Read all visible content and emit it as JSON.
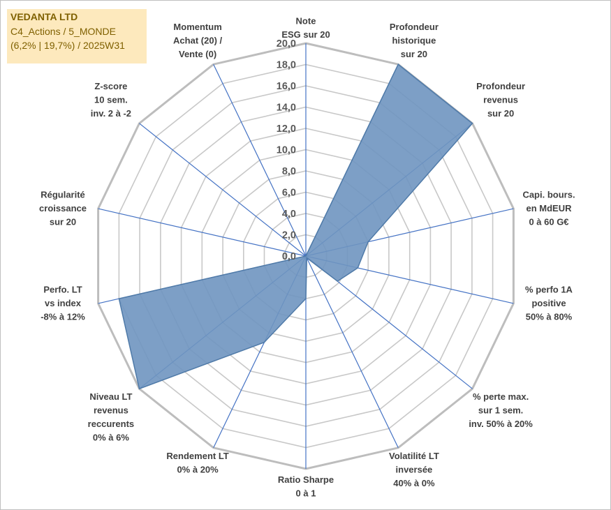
{
  "title_box": {
    "line1": "VEDANTA LTD",
    "line2": "C4_Actions / 5_MONDE",
    "line3": "(6,2% | 19,7%) / 2025W31"
  },
  "chart_data": {
    "type": "radar",
    "axes": [
      {
        "label": [
          "Note",
          "ESG sur 20"
        ]
      },
      {
        "label": [
          "Profondeur",
          "historique",
          "sur 20"
        ]
      },
      {
        "label": [
          "Profondeur",
          "revenus",
          "sur 20"
        ]
      },
      {
        "label": [
          "Capi. bours.",
          "en MdEUR",
          "0 à 60 G€"
        ]
      },
      {
        "label": [
          "% perfo 1A",
          "positive",
          "50% à 80%"
        ]
      },
      {
        "label": [
          "% perte max.",
          "sur 1 sem.",
          "inv. 50% à 20%"
        ]
      },
      {
        "label": [
          "Volatilité LT",
          "inversée",
          "40% à 0%"
        ]
      },
      {
        "label": [
          "Ratio Sharpe",
          "0 à 1"
        ]
      },
      {
        "label": [
          "Rendement LT",
          "0% à 20%"
        ]
      },
      {
        "label": [
          "Niveau LT",
          "revenus",
          "reccurents",
          "0% à 6%"
        ]
      },
      {
        "label": [
          "Perfo. LT",
          "vs index",
          "-8% à 12%"
        ]
      },
      {
        "label": [
          "Régularité",
          "croissance",
          "sur 20"
        ]
      },
      {
        "label": [
          "Z-score",
          "10 sem.",
          "inv. 2 à -2"
        ]
      },
      {
        "label": [
          "Momentum",
          "Achat (20) /",
          "Vente (0)"
        ]
      }
    ],
    "series": [
      {
        "values": [
          0.0,
          20.0,
          20.0,
          6.0,
          5.0,
          3.8,
          0.2,
          4.0,
          9.0,
          20.0,
          18.0,
          0.0,
          0.0,
          0.0
        ],
        "color": "#6f95c0",
        "stroke": "#4f7aa8"
      }
    ],
    "rlim": [
      0,
      20
    ],
    "ticks": [
      "0,0",
      "2,0",
      "4,0",
      "6,0",
      "8,0",
      "10,0",
      "12,0",
      "14,0",
      "16,0",
      "18,0",
      "20,0"
    ],
    "gridline_color": "#c8c8c8",
    "spoke_color": "#4472c4"
  }
}
